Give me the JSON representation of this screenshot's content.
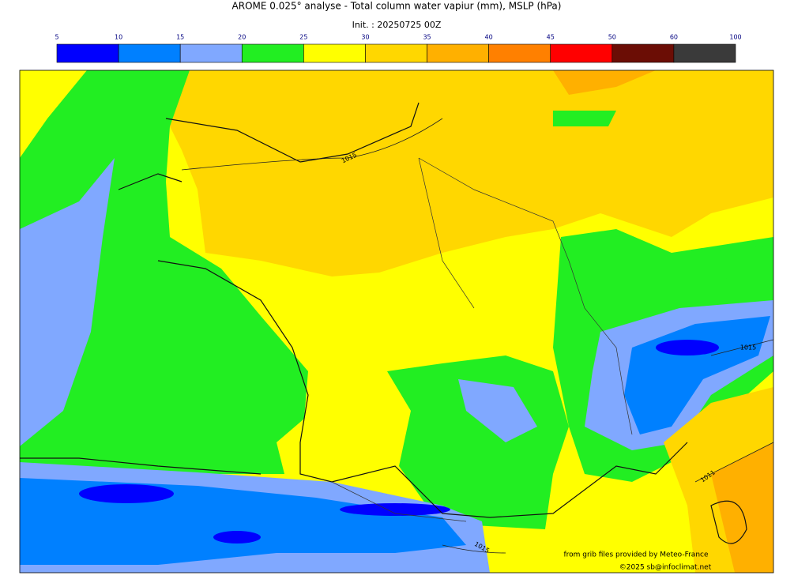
{
  "header": {
    "title": "AROME 0.025° analyse - Total column water vapiur (mm), MSLP (hPa)",
    "init": "Init. : 20250725 00Z"
  },
  "colorbar": {
    "ticks": [
      5,
      10,
      15,
      20,
      25,
      30,
      35,
      40,
      45,
      50,
      60,
      100
    ],
    "colors": [
      "#0000ff",
      "#0080ff",
      "#80a8ff",
      "#22ee22",
      "#ffff00",
      "#ffd700",
      "#ffb000",
      "#ff8000",
      "#ff0000",
      "#6b0d05",
      "#3a3a3a"
    ]
  },
  "map": {
    "isobar_labels": [
      "1015",
      "1015",
      "1011",
      "1015"
    ],
    "credits": [
      "from grib files provided by Meteo-France",
      "©2025 sb@infoclimat.net"
    ]
  }
}
